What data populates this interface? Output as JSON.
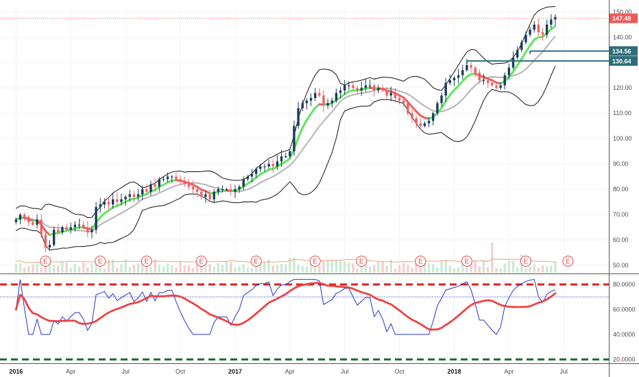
{
  "chart_data": {
    "type": "candlestick",
    "colors": {
      "up": "#1b3a5c",
      "down": "#ef5f5f",
      "ema_up": "#5de85d",
      "ema_down": "#ef5f5f",
      "bollinger": "#111111",
      "sma": "#b4b4b4",
      "volume_up": "#cfe9d6",
      "volume_down": "#f6cfcf",
      "volume_ma": "#f2a07a",
      "rsi": "#2233cc",
      "rsi_ma": "#ef4040",
      "upper_band": "#d92020",
      "lower_band": "#1d6a2a",
      "level_line": "#2e6e78",
      "current_price": "#ef5a5a"
    },
    "price_axis": {
      "ticks": [
        "150.00",
        "140.00",
        "130.00",
        "120.00",
        "110.00",
        "100.00",
        "90.00",
        "80.00",
        "70.00",
        "60.00",
        "50.00"
      ],
      "range": [
        47,
        152
      ]
    },
    "rsi_axis": {
      "ticks": [
        "80.0000",
        "60.0000",
        "40.0000",
        "20.0000"
      ],
      "range": [
        18,
        86
      ]
    },
    "x_axis": {
      "ticks": [
        {
          "label": "2016",
          "week": 0,
          "bold": true
        },
        {
          "label": "Apr",
          "week": 13,
          "bold": false
        },
        {
          "label": "Jul",
          "week": 26,
          "bold": false
        },
        {
          "label": "Oct",
          "week": 39,
          "bold": false
        },
        {
          "label": "2017",
          "week": 52,
          "bold": true
        },
        {
          "label": "Apr",
          "week": 65,
          "bold": false
        },
        {
          "label": "Jul",
          "week": 78,
          "bold": false
        },
        {
          "label": "Oct",
          "week": 91,
          "bold": false
        },
        {
          "label": "2018",
          "week": 104,
          "bold": true
        },
        {
          "label": "Apr",
          "week": 117,
          "bold": false
        },
        {
          "label": "Jul",
          "week": 130,
          "bold": false
        }
      ],
      "week_range": [
        -3.8,
        140.7
      ]
    },
    "price_tags": [
      {
        "label": "147.48",
        "value": 147.48,
        "color": "#ef5a5a"
      },
      {
        "label": "134.56",
        "value": 134.56,
        "color": "#2e6e78"
      },
      {
        "label": "130.64",
        "value": 130.64,
        "color": "#2e6e78"
      }
    ],
    "levels": [
      {
        "value": 134.56,
        "from_week": 122
      },
      {
        "value": 130.64,
        "from_week": 107
      }
    ],
    "rsi_guides": {
      "upper": 80,
      "lower": 20,
      "mid": 70
    },
    "earnings": {
      "label": "E",
      "weeks": [
        7,
        20,
        31,
        44,
        57,
        71,
        82,
        96,
        107,
        121,
        131
      ]
    },
    "close": [
      68,
      70,
      69,
      67,
      66,
      68,
      62,
      57,
      58,
      64,
      63,
      65,
      64,
      65,
      66,
      66,
      65,
      63,
      64,
      73,
      74,
      75,
      74,
      76,
      75,
      76,
      77,
      78,
      77,
      78,
      80,
      79,
      82,
      81,
      84,
      84,
      85,
      85,
      84,
      83,
      82,
      81,
      80,
      79,
      77,
      78,
      76,
      79,
      80,
      80,
      80,
      79,
      80,
      81,
      84,
      85,
      86,
      88,
      89,
      89,
      90,
      89,
      91,
      93,
      93,
      95,
      105,
      112,
      114,
      115,
      116,
      118,
      117,
      113,
      114,
      115,
      118,
      119,
      121,
      121,
      120,
      119,
      120,
      121,
      121,
      119,
      120,
      119,
      117,
      118,
      116,
      115,
      114,
      110,
      108,
      106,
      105,
      106,
      107,
      110,
      114,
      117,
      122,
      123,
      124,
      125,
      127,
      129,
      128,
      126,
      123,
      123,
      122,
      121,
      120,
      121,
      125,
      128,
      132,
      135,
      138,
      141,
      143,
      145,
      142,
      141,
      145,
      147,
      148
    ]
  }
}
